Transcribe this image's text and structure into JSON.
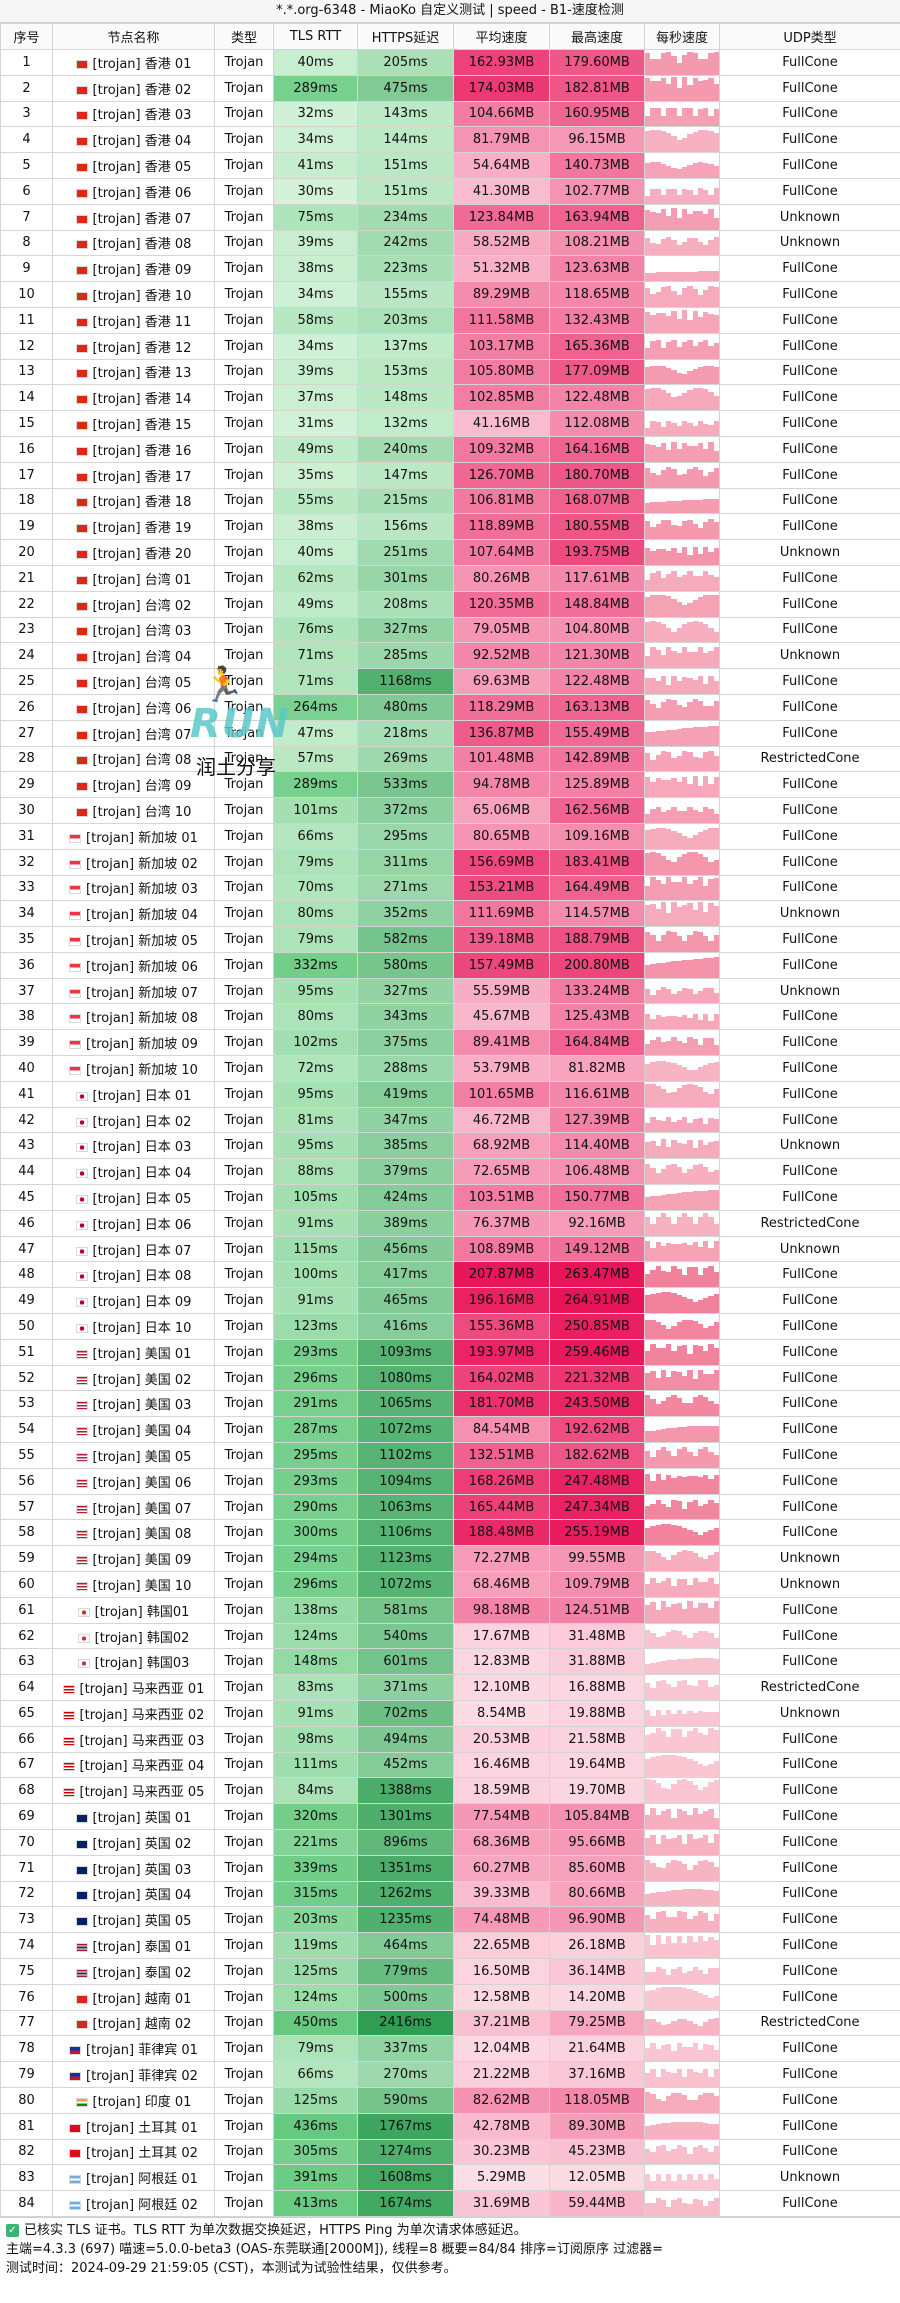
{
  "title": "*.*.org-6348 - MiaoKo 自定义测试 | speed - B1-速度检测",
  "columns": [
    "序号",
    "节点名称",
    "类型",
    "TLS RTT",
    "HTTPS延迟",
    "平均速度",
    "最高速度",
    "每秒速度",
    "UDP类型"
  ],
  "rows": [
    {
      "id": "1",
      "flag": "hk",
      "name": "[trojan] 香港 01",
      "type": "Trojan",
      "tls": "40ms",
      "https": "205ms",
      "avg": "162.93MB",
      "max": "179.60MB",
      "udp": "FullCone"
    },
    {
      "id": "2",
      "flag": "hk",
      "name": "[trojan] 香港 02",
      "type": "Trojan",
      "tls": "289ms",
      "https": "475ms",
      "avg": "174.03MB",
      "max": "182.81MB",
      "udp": "FullCone"
    },
    {
      "id": "3",
      "flag": "hk",
      "name": "[trojan] 香港 03",
      "type": "Trojan",
      "tls": "32ms",
      "https": "143ms",
      "avg": "104.66MB",
      "max": "160.95MB",
      "udp": "FullCone"
    },
    {
      "id": "4",
      "flag": "hk",
      "name": "[trojan] 香港 04",
      "type": "Trojan",
      "tls": "34ms",
      "https": "144ms",
      "avg": "81.79MB",
      "max": "96.15MB",
      "udp": "FullCone"
    },
    {
      "id": "5",
      "flag": "hk",
      "name": "[trojan] 香港 05",
      "type": "Trojan",
      "tls": "41ms",
      "https": "151ms",
      "avg": "54.64MB",
      "max": "140.73MB",
      "udp": "FullCone"
    },
    {
      "id": "6",
      "flag": "hk",
      "name": "[trojan] 香港 06",
      "type": "Trojan",
      "tls": "30ms",
      "https": "151ms",
      "avg": "41.30MB",
      "max": "102.77MB",
      "udp": "FullCone"
    },
    {
      "id": "7",
      "flag": "hk",
      "name": "[trojan] 香港 07",
      "type": "Trojan",
      "tls": "75ms",
      "https": "234ms",
      "avg": "123.84MB",
      "max": "163.94MB",
      "udp": "Unknown"
    },
    {
      "id": "8",
      "flag": "hk",
      "name": "[trojan] 香港 08",
      "type": "Trojan",
      "tls": "39ms",
      "https": "242ms",
      "avg": "58.52MB",
      "max": "108.21MB",
      "udp": "Unknown"
    },
    {
      "id": "9",
      "flag": "hk",
      "name": "[trojan] 香港 09",
      "type": "Trojan",
      "tls": "38ms",
      "https": "223ms",
      "avg": "51.32MB",
      "max": "123.63MB",
      "udp": "FullCone"
    },
    {
      "id": "10",
      "flag": "hk",
      "name": "[trojan] 香港 10",
      "type": "Trojan",
      "tls": "34ms",
      "https": "155ms",
      "avg": "89.29MB",
      "max": "118.65MB",
      "udp": "FullCone"
    },
    {
      "id": "11",
      "flag": "hk",
      "name": "[trojan] 香港 11",
      "type": "Trojan",
      "tls": "58ms",
      "https": "203ms",
      "avg": "111.58MB",
      "max": "132.43MB",
      "udp": "FullCone"
    },
    {
      "id": "12",
      "flag": "hk",
      "name": "[trojan] 香港 12",
      "type": "Trojan",
      "tls": "34ms",
      "https": "137ms",
      "avg": "103.17MB",
      "max": "165.36MB",
      "udp": "FullCone"
    },
    {
      "id": "13",
      "flag": "hk",
      "name": "[trojan] 香港 13",
      "type": "Trojan",
      "tls": "39ms",
      "https": "153ms",
      "avg": "105.80MB",
      "max": "177.09MB",
      "udp": "FullCone"
    },
    {
      "id": "14",
      "flag": "hk",
      "name": "[trojan] 香港 14",
      "type": "Trojan",
      "tls": "37ms",
      "https": "148ms",
      "avg": "102.85MB",
      "max": "122.48MB",
      "udp": "FullCone"
    },
    {
      "id": "15",
      "flag": "hk",
      "name": "[trojan] 香港 15",
      "type": "Trojan",
      "tls": "31ms",
      "https": "132ms",
      "avg": "41.16MB",
      "max": "112.08MB",
      "udp": "FullCone"
    },
    {
      "id": "16",
      "flag": "hk",
      "name": "[trojan] 香港 16",
      "type": "Trojan",
      "tls": "49ms",
      "https": "240ms",
      "avg": "109.32MB",
      "max": "164.16MB",
      "udp": "FullCone"
    },
    {
      "id": "17",
      "flag": "hk",
      "name": "[trojan] 香港 17",
      "type": "Trojan",
      "tls": "35ms",
      "https": "147ms",
      "avg": "126.70MB",
      "max": "180.70MB",
      "udp": "FullCone"
    },
    {
      "id": "18",
      "flag": "hk",
      "name": "[trojan] 香港 18",
      "type": "Trojan",
      "tls": "55ms",
      "https": "215ms",
      "avg": "106.81MB",
      "max": "168.07MB",
      "udp": "FullCone"
    },
    {
      "id": "19",
      "flag": "hk",
      "name": "[trojan] 香港 19",
      "type": "Trojan",
      "tls": "38ms",
      "https": "156ms",
      "avg": "118.89MB",
      "max": "180.55MB",
      "udp": "FullCone"
    },
    {
      "id": "20",
      "flag": "hk",
      "name": "[trojan] 香港 20",
      "type": "Trojan",
      "tls": "40ms",
      "https": "251ms",
      "avg": "107.64MB",
      "max": "193.75MB",
      "udp": "Unknown"
    },
    {
      "id": "21",
      "flag": "cn",
      "name": "[trojan] 台湾 01",
      "type": "Trojan",
      "tls": "62ms",
      "https": "301ms",
      "avg": "80.26MB",
      "max": "117.61MB",
      "udp": "FullCone"
    },
    {
      "id": "22",
      "flag": "cn",
      "name": "[trojan] 台湾 02",
      "type": "Trojan",
      "tls": "49ms",
      "https": "208ms",
      "avg": "120.35MB",
      "max": "148.84MB",
      "udp": "FullCone"
    },
    {
      "id": "23",
      "flag": "cn",
      "name": "[trojan] 台湾 03",
      "type": "Trojan",
      "tls": "76ms",
      "https": "327ms",
      "avg": "79.05MB",
      "max": "104.80MB",
      "udp": "FullCone"
    },
    {
      "id": "24",
      "flag": "cn",
      "name": "[trojan] 台湾 04",
      "type": "Trojan",
      "tls": "71ms",
      "https": "285ms",
      "avg": "92.52MB",
      "max": "121.30MB",
      "udp": "Unknown"
    },
    {
      "id": "25",
      "flag": "cn",
      "name": "[trojan] 台湾 05",
      "type": "Trojan",
      "tls": "71ms",
      "https": "1168ms",
      "avg": "69.63MB",
      "max": "122.48MB",
      "udp": "FullCone"
    },
    {
      "id": "26",
      "flag": "cn",
      "name": "[trojan] 台湾 06",
      "type": "Trojan",
      "tls": "264ms",
      "https": "480ms",
      "avg": "118.29MB",
      "max": "163.13MB",
      "udp": "FullCone"
    },
    {
      "id": "27",
      "flag": "cn",
      "name": "[trojan] 台湾 07",
      "type": "Trojan",
      "tls": "47ms",
      "https": "218ms",
      "avg": "136.87MB",
      "max": "155.49MB",
      "udp": "FullCone"
    },
    {
      "id": "28",
      "flag": "cn",
      "name": "[trojan] 台湾 08",
      "type": "Trojan",
      "tls": "57ms",
      "https": "269ms",
      "avg": "101.48MB",
      "max": "142.89MB",
      "udp": "RestrictedCone"
    },
    {
      "id": "29",
      "flag": "cn",
      "name": "[trojan] 台湾 09",
      "type": "Trojan",
      "tls": "289ms",
      "https": "533ms",
      "avg": "94.78MB",
      "max": "125.89MB",
      "udp": "FullCone"
    },
    {
      "id": "30",
      "flag": "cn",
      "name": "[trojan] 台湾 10",
      "type": "Trojan",
      "tls": "101ms",
      "https": "372ms",
      "avg": "65.06MB",
      "max": "162.56MB",
      "udp": "FullCone"
    },
    {
      "id": "31",
      "flag": "sg",
      "name": "[trojan] 新加坡 01",
      "type": "Trojan",
      "tls": "66ms",
      "https": "295ms",
      "avg": "80.65MB",
      "max": "109.16MB",
      "udp": "FullCone"
    },
    {
      "id": "32",
      "flag": "sg",
      "name": "[trojan] 新加坡 02",
      "type": "Trojan",
      "tls": "79ms",
      "https": "311ms",
      "avg": "156.69MB",
      "max": "183.41MB",
      "udp": "FullCone"
    },
    {
      "id": "33",
      "flag": "sg",
      "name": "[trojan] 新加坡 03",
      "type": "Trojan",
      "tls": "70ms",
      "https": "271ms",
      "avg": "153.21MB",
      "max": "164.49MB",
      "udp": "FullCone"
    },
    {
      "id": "34",
      "flag": "sg",
      "name": "[trojan] 新加坡 04",
      "type": "Trojan",
      "tls": "80ms",
      "https": "352ms",
      "avg": "111.69MB",
      "max": "114.57MB",
      "udp": "Unknown"
    },
    {
      "id": "35",
      "flag": "sg",
      "name": "[trojan] 新加坡 05",
      "type": "Trojan",
      "tls": "79ms",
      "https": "582ms",
      "avg": "139.18MB",
      "max": "188.79MB",
      "udp": "FullCone"
    },
    {
      "id": "36",
      "flag": "sg",
      "name": "[trojan] 新加坡 06",
      "type": "Trojan",
      "tls": "332ms",
      "https": "580ms",
      "avg": "157.49MB",
      "max": "200.80MB",
      "udp": "FullCone"
    },
    {
      "id": "37",
      "flag": "sg",
      "name": "[trojan] 新加坡 07",
      "type": "Trojan",
      "tls": "95ms",
      "https": "327ms",
      "avg": "55.59MB",
      "max": "133.24MB",
      "udp": "Unknown"
    },
    {
      "id": "38",
      "flag": "sg",
      "name": "[trojan] 新加坡 08",
      "type": "Trojan",
      "tls": "80ms",
      "https": "343ms",
      "avg": "45.67MB",
      "max": "125.43MB",
      "udp": "FullCone"
    },
    {
      "id": "39",
      "flag": "sg",
      "name": "[trojan] 新加坡 09",
      "type": "Trojan",
      "tls": "102ms",
      "https": "375ms",
      "avg": "89.41MB",
      "max": "164.84MB",
      "udp": "FullCone"
    },
    {
      "id": "40",
      "flag": "sg",
      "name": "[trojan] 新加坡 10",
      "type": "Trojan",
      "tls": "72ms",
      "https": "288ms",
      "avg": "53.79MB",
      "max": "81.82MB",
      "udp": "FullCone"
    },
    {
      "id": "41",
      "flag": "jp",
      "name": "[trojan] 日本 01",
      "type": "Trojan",
      "tls": "95ms",
      "https": "419ms",
      "avg": "101.65MB",
      "max": "116.61MB",
      "udp": "FullCone"
    },
    {
      "id": "42",
      "flag": "jp",
      "name": "[trojan] 日本 02",
      "type": "Trojan",
      "tls": "81ms",
      "https": "347ms",
      "avg": "46.72MB",
      "max": "127.39MB",
      "udp": "FullCone"
    },
    {
      "id": "43",
      "flag": "jp",
      "name": "[trojan] 日本 03",
      "type": "Trojan",
      "tls": "95ms",
      "https": "385ms",
      "avg": "68.92MB",
      "max": "114.40MB",
      "udp": "Unknown"
    },
    {
      "id": "44",
      "flag": "jp",
      "name": "[trojan] 日本 04",
      "type": "Trojan",
      "tls": "88ms",
      "https": "379ms",
      "avg": "72.65MB",
      "max": "106.48MB",
      "udp": "FullCone"
    },
    {
      "id": "45",
      "flag": "jp",
      "name": "[trojan] 日本 05",
      "type": "Trojan",
      "tls": "105ms",
      "https": "424ms",
      "avg": "103.51MB",
      "max": "150.77MB",
      "udp": "FullCone"
    },
    {
      "id": "46",
      "flag": "jp",
      "name": "[trojan] 日本 06",
      "type": "Trojan",
      "tls": "91ms",
      "https": "389ms",
      "avg": "76.37MB",
      "max": "92.16MB",
      "udp": "RestrictedCone"
    },
    {
      "id": "47",
      "flag": "jp",
      "name": "[trojan] 日本 07",
      "type": "Trojan",
      "tls": "115ms",
      "https": "456ms",
      "avg": "108.89MB",
      "max": "149.12MB",
      "udp": "Unknown"
    },
    {
      "id": "48",
      "flag": "jp",
      "name": "[trojan] 日本 08",
      "type": "Trojan",
      "tls": "100ms",
      "https": "417ms",
      "avg": "207.87MB",
      "max": "263.47MB",
      "udp": "FullCone"
    },
    {
      "id": "49",
      "flag": "jp",
      "name": "[trojan] 日本 09",
      "type": "Trojan",
      "tls": "91ms",
      "https": "465ms",
      "avg": "196.16MB",
      "max": "264.91MB",
      "udp": "FullCone"
    },
    {
      "id": "50",
      "flag": "jp",
      "name": "[trojan] 日本 10",
      "type": "Trojan",
      "tls": "123ms",
      "https": "416ms",
      "avg": "155.36MB",
      "max": "250.85MB",
      "udp": "FullCone"
    },
    {
      "id": "51",
      "flag": "us",
      "name": "[trojan] 美国 01",
      "type": "Trojan",
      "tls": "293ms",
      "https": "1093ms",
      "avg": "193.97MB",
      "max": "259.46MB",
      "udp": "FullCone"
    },
    {
      "id": "52",
      "flag": "us",
      "name": "[trojan] 美国 02",
      "type": "Trojan",
      "tls": "296ms",
      "https": "1080ms",
      "avg": "164.02MB",
      "max": "221.32MB",
      "udp": "FullCone"
    },
    {
      "id": "53",
      "flag": "us",
      "name": "[trojan] 美国 03",
      "type": "Trojan",
      "tls": "291ms",
      "https": "1065ms",
      "avg": "181.70MB",
      "max": "243.50MB",
      "udp": "FullCone"
    },
    {
      "id": "54",
      "flag": "us",
      "name": "[trojan] 美国 04",
      "type": "Trojan",
      "tls": "287ms",
      "https": "1072ms",
      "avg": "84.54MB",
      "max": "192.62MB",
      "udp": "FullCone"
    },
    {
      "id": "55",
      "flag": "us",
      "name": "[trojan] 美国 05",
      "type": "Trojan",
      "tls": "295ms",
      "https": "1102ms",
      "avg": "132.51MB",
      "max": "182.62MB",
      "udp": "FullCone"
    },
    {
      "id": "56",
      "flag": "us",
      "name": "[trojan] 美国 06",
      "type": "Trojan",
      "tls": "293ms",
      "https": "1094ms",
      "avg": "168.26MB",
      "max": "247.48MB",
      "udp": "FullCone"
    },
    {
      "id": "57",
      "flag": "us",
      "name": "[trojan] 美国 07",
      "type": "Trojan",
      "tls": "290ms",
      "https": "1063ms",
      "avg": "165.44MB",
      "max": "247.34MB",
      "udp": "FullCone"
    },
    {
      "id": "58",
      "flag": "us",
      "name": "[trojan] 美国 08",
      "type": "Trojan",
      "tls": "300ms",
      "https": "1106ms",
      "avg": "188.48MB",
      "max": "255.19MB",
      "udp": "FullCone"
    },
    {
      "id": "59",
      "flag": "us",
      "name": "[trojan] 美国 09",
      "type": "Trojan",
      "tls": "294ms",
      "https": "1123ms",
      "avg": "72.27MB",
      "max": "99.55MB",
      "udp": "Unknown"
    },
    {
      "id": "60",
      "flag": "us",
      "name": "[trojan] 美国 10",
      "type": "Trojan",
      "tls": "296ms",
      "https": "1072ms",
      "avg": "68.46MB",
      "max": "109.79MB",
      "udp": "Unknown"
    },
    {
      "id": "61",
      "flag": "kr",
      "name": "[trojan] 韩国01",
      "type": "Trojan",
      "tls": "138ms",
      "https": "581ms",
      "avg": "98.18MB",
      "max": "124.51MB",
      "udp": "FullCone"
    },
    {
      "id": "62",
      "flag": "kr",
      "name": "[trojan] 韩国02",
      "type": "Trojan",
      "tls": "124ms",
      "https": "540ms",
      "avg": "17.67MB",
      "max": "31.48MB",
      "udp": "FullCone"
    },
    {
      "id": "63",
      "flag": "kr",
      "name": "[trojan] 韩国03",
      "type": "Trojan",
      "tls": "148ms",
      "https": "601ms",
      "avg": "12.83MB",
      "max": "31.88MB",
      "udp": "FullCone"
    },
    {
      "id": "64",
      "flag": "my",
      "name": "[trojan] 马来西亚 01",
      "type": "Trojan",
      "tls": "83ms",
      "https": "371ms",
      "avg": "12.10MB",
      "max": "16.88MB",
      "udp": "RestrictedCone"
    },
    {
      "id": "65",
      "flag": "my",
      "name": "[trojan] 马来西亚 02",
      "type": "Trojan",
      "tls": "91ms",
      "https": "702ms",
      "avg": "8.54MB",
      "max": "19.88MB",
      "udp": "Unknown"
    },
    {
      "id": "66",
      "flag": "my",
      "name": "[trojan] 马来西亚 03",
      "type": "Trojan",
      "tls": "98ms",
      "https": "494ms",
      "avg": "20.53MB",
      "max": "21.58MB",
      "udp": "FullCone"
    },
    {
      "id": "67",
      "flag": "my",
      "name": "[trojan] 马来西亚 04",
      "type": "Trojan",
      "tls": "111ms",
      "https": "452ms",
      "avg": "16.46MB",
      "max": "19.64MB",
      "udp": "FullCone"
    },
    {
      "id": "68",
      "flag": "my",
      "name": "[trojan] 马来西亚 05",
      "type": "Trojan",
      "tls": "84ms",
      "https": "1388ms",
      "avg": "18.59MB",
      "max": "19.70MB",
      "udp": "FullCone"
    },
    {
      "id": "69",
      "flag": "gb",
      "name": "[trojan] 英国 01",
      "type": "Trojan",
      "tls": "320ms",
      "https": "1301ms",
      "avg": "77.54MB",
      "max": "105.84MB",
      "udp": "FullCone"
    },
    {
      "id": "70",
      "flag": "gb",
      "name": "[trojan] 英国 02",
      "type": "Trojan",
      "tls": "221ms",
      "https": "896ms",
      "avg": "68.36MB",
      "max": "95.66MB",
      "udp": "FullCone"
    },
    {
      "id": "71",
      "flag": "gb",
      "name": "[trojan] 英国 03",
      "type": "Trojan",
      "tls": "339ms",
      "https": "1351ms",
      "avg": "60.27MB",
      "max": "85.60MB",
      "udp": "FullCone"
    },
    {
      "id": "72",
      "flag": "gb",
      "name": "[trojan] 英国 04",
      "type": "Trojan",
      "tls": "315ms",
      "https": "1262ms",
      "avg": "39.33MB",
      "max": "80.66MB",
      "udp": "FullCone"
    },
    {
      "id": "73",
      "flag": "gb",
      "name": "[trojan] 英国 05",
      "type": "Trojan",
      "tls": "203ms",
      "https": "1235ms",
      "avg": "74.48MB",
      "max": "96.90MB",
      "udp": "FullCone"
    },
    {
      "id": "74",
      "flag": "th",
      "name": "[trojan] 泰国 01",
      "type": "Trojan",
      "tls": "119ms",
      "https": "464ms",
      "avg": "22.65MB",
      "max": "26.18MB",
      "udp": "FullCone"
    },
    {
      "id": "75",
      "flag": "th",
      "name": "[trojan] 泰国 02",
      "type": "Trojan",
      "tls": "125ms",
      "https": "779ms",
      "avg": "16.50MB",
      "max": "36.14MB",
      "udp": "FullCone"
    },
    {
      "id": "76",
      "flag": "vn",
      "name": "[trojan] 越南 01",
      "type": "Trojan",
      "tls": "124ms",
      "https": "500ms",
      "avg": "12.58MB",
      "max": "14.20MB",
      "udp": "FullCone"
    },
    {
      "id": "77",
      "flag": "vn",
      "name": "[trojan] 越南 02",
      "type": "Trojan",
      "tls": "450ms",
      "https": "2416ms",
      "avg": "37.21MB",
      "max": "79.25MB",
      "udp": "RestrictedCone"
    },
    {
      "id": "78",
      "flag": "ph",
      "name": "[trojan] 菲律宾 01",
      "type": "Trojan",
      "tls": "79ms",
      "https": "337ms",
      "avg": "12.04MB",
      "max": "21.64MB",
      "udp": "FullCone"
    },
    {
      "id": "79",
      "flag": "ph",
      "name": "[trojan] 菲律宾 02",
      "type": "Trojan",
      "tls": "66ms",
      "https": "270ms",
      "avg": "21.22MB",
      "max": "37.16MB",
      "udp": "FullCone"
    },
    {
      "id": "80",
      "flag": "in",
      "name": "[trojan] 印度 01",
      "type": "Trojan",
      "tls": "125ms",
      "https": "590ms",
      "avg": "82.62MB",
      "max": "118.05MB",
      "udp": "FullCone"
    },
    {
      "id": "81",
      "flag": "tr",
      "name": "[trojan] 土耳其 01",
      "type": "Trojan",
      "tls": "436ms",
      "https": "1767ms",
      "avg": "42.78MB",
      "max": "89.30MB",
      "udp": "FullCone"
    },
    {
      "id": "82",
      "flag": "tr",
      "name": "[trojan] 土耳其 02",
      "type": "Trojan",
      "tls": "305ms",
      "https": "1274ms",
      "avg": "30.23MB",
      "max": "45.23MB",
      "udp": "FullCone"
    },
    {
      "id": "83",
      "flag": "ar",
      "name": "[trojan] 阿根廷 01",
      "type": "Trojan",
      "tls": "391ms",
      "https": "1608ms",
      "avg": "5.29MB",
      "max": "12.05MB",
      "udp": "Unknown"
    },
    {
      "id": "84",
      "flag": "ar",
      "name": "[trojan] 阿根廷 02",
      "type": "Trojan",
      "tls": "413ms",
      "https": "1674ms",
      "avg": "31.69MB",
      "max": "59.44MB",
      "udp": "FullCone"
    }
  ],
  "footer": {
    "line1": "已核实 TLS 证书。TLS RTT 为单次数据交换延迟，HTTPS Ping 为单次请求体感延迟。",
    "line2": "主端=4.3.3 (697) 喵速=5.0.0-beta3 (OAS-东莞联通[2000M]), 线程=8 概要=84/84 排序=订阅原序 过滤器=",
    "line3": "测试时间：2024-09-29 21:59:05 (CST)，本测试为试验性结果，仅供参考。"
  },
  "logo": {
    "text": "RUN",
    "subtitle": "润土分享",
    "icon": "runner-icon"
  },
  "colors": {
    "tls_low": "#d3f2d8",
    "tls_high": "#66c97f",
    "https_low": "#c2ecca",
    "https_high": "#2f9e53",
    "speed_low": "#fde4ea",
    "speed_high": "#e8145a",
    "bar": "#f06b8a"
  }
}
